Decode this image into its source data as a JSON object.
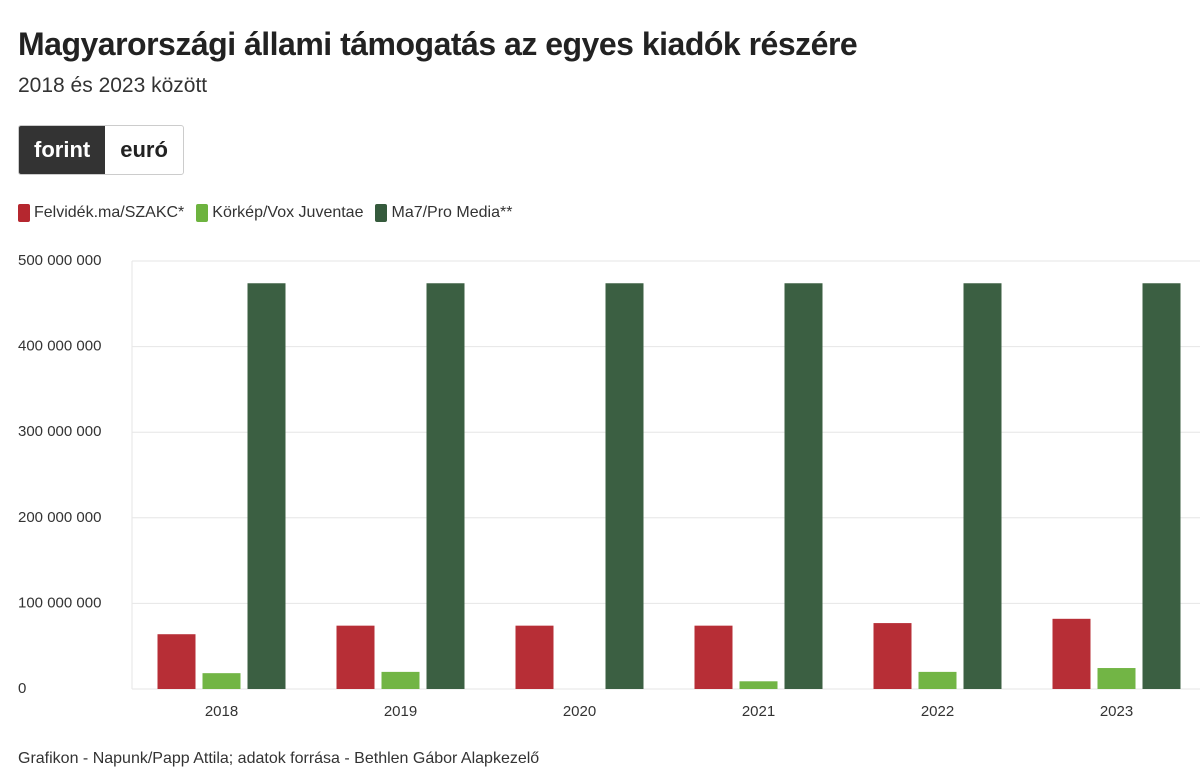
{
  "chart_data": {
    "type": "bar",
    "title": "Magyarországi állami támogatás az egyes kiadók részére",
    "subtitle": "2018 és 2023 között",
    "toggle": [
      "forint",
      "euró"
    ],
    "categories": [
      "2018",
      "2019",
      "2020",
      "2021",
      "2022",
      "2023"
    ],
    "series": [
      {
        "name": "Felvidék.ma/SZAKC*",
        "color": "#b5272f",
        "values": [
          64000000,
          74000000,
          74000000,
          74000000,
          77000000,
          82000000
        ]
      },
      {
        "name": "Körkép/Vox Juventae",
        "color": "#6db33f",
        "values": [
          18500000,
          20000000,
          null,
          9000000,
          20000000,
          24500000
        ]
      },
      {
        "name": "Ma7/Pro Media**",
        "color": "#355a3c",
        "values": [
          474000000,
          474000000,
          474000000,
          474000000,
          474000000,
          474000000
        ]
      }
    ],
    "ylim": [
      0,
      500000000
    ],
    "yticks": [
      0,
      {
        "value": 100000000,
        "label": "100 000 000"
      },
      {
        "value": 200000000,
        "label": "200 000 000"
      },
      {
        "value": 300000000,
        "label": "300 000 000"
      },
      {
        "value": 400000000,
        "label": "400 000 000"
      },
      {
        "value": 500000000,
        "label": "500 000 000"
      }
    ],
    "grid": true,
    "source": "Grafikon - Napunk/Papp Attila; adatok forrása - Bethlen Gábor Alapkezelő"
  }
}
